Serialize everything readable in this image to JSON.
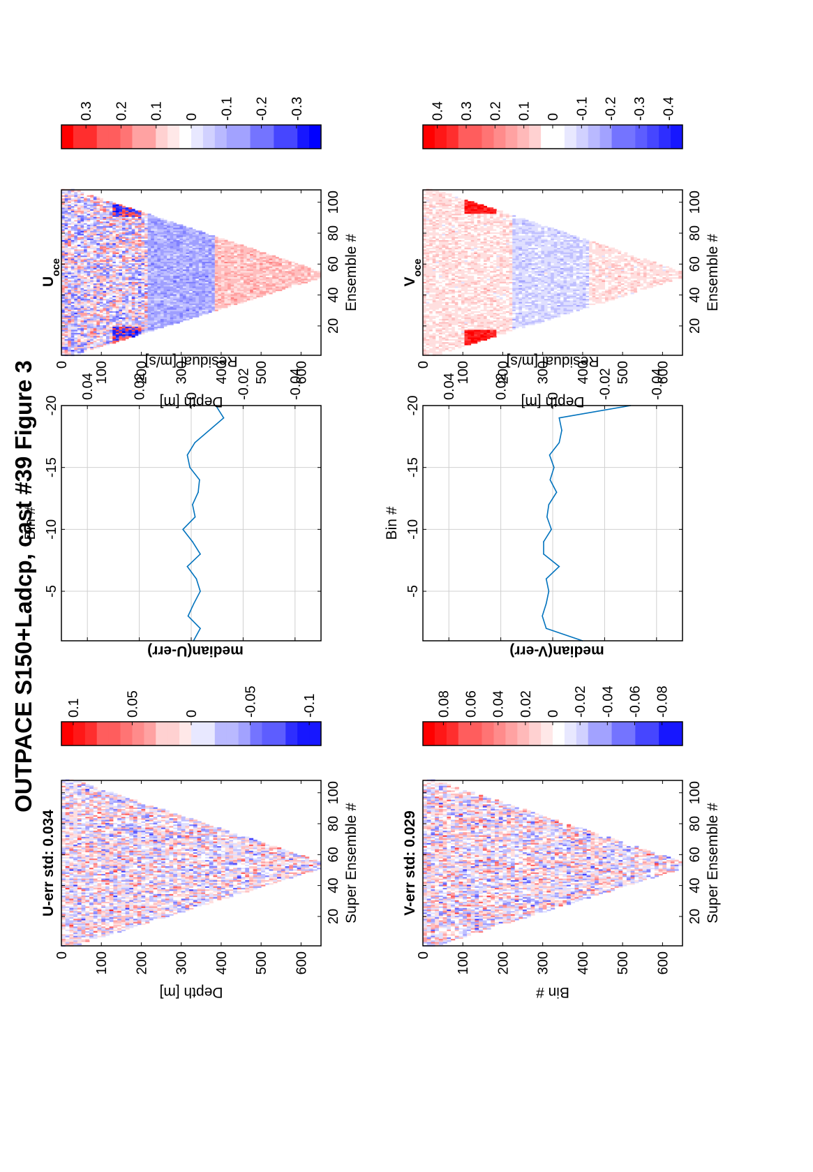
{
  "figure": {
    "title": "OUTPACE S150+Ladcp, cast #39  Figure 3"
  },
  "chart_data": [
    {
      "type": "heatmap",
      "title": "U-err std: 0.034",
      "xlabel": "Super Ensemble #",
      "ylabel": "Depth [m]",
      "xlim": [
        1,
        108
      ],
      "ylim": [
        0,
        650
      ],
      "xticks": [
        "20",
        "40",
        "60",
        "80",
        "100"
      ],
      "yticks": [
        "0",
        "100",
        "200",
        "300",
        "400",
        "500",
        "600"
      ],
      "shape": "V-shaped profile: depth 0 at ensembles 1 and 108, max ~640 m near ensemble 53",
      "colorbar": {
        "ticks": [
          "0.1",
          "0.05",
          "0",
          "-0.05",
          "-0.1"
        ],
        "range": [
          -0.11,
          0.11
        ],
        "colormap": "red-white-blue"
      }
    },
    {
      "type": "line",
      "title": "median(U-err)",
      "xlabel": "Residual [m/s]",
      "ylabel": "Bin #",
      "xlim": [
        -0.05,
        0.05
      ],
      "ylim": [
        -20,
        -1
      ],
      "xticks": [
        "-0.04",
        "-0.02",
        "0",
        "0.02",
        "0.04"
      ],
      "yticks": [
        "-5",
        "-10",
        "-15",
        "-20"
      ],
      "grid": true,
      "x": [
        -0.0009,
        -0.0035,
        0.0012,
        -0.001,
        -0.0035,
        -0.002,
        0.0015,
        -0.0035,
        -0.0005,
        0.0032,
        -0.0015,
        -0.0005,
        -0.0027,
        -0.0032,
        0.0005,
        0.0015,
        -0.0014,
        -0.0125,
        -0.0095
      ],
      "y": [
        -1,
        -2,
        -3,
        -4,
        -5,
        -6,
        -7,
        -8,
        -9,
        -10,
        -11,
        -12,
        -13,
        -14,
        -15,
        -16,
        -17,
        -19,
        -20
      ]
    },
    {
      "type": "heatmap",
      "title": "U",
      "title_subscript": "oce",
      "xlabel": "Ensemble #",
      "ylabel": "Depth [m]",
      "xlim": [
        1,
        108
      ],
      "ylim": [
        0,
        650
      ],
      "xticks": [
        "20",
        "40",
        "60",
        "80",
        "100"
      ],
      "yticks": [
        "0",
        "100",
        "200",
        "300",
        "400",
        "500",
        "600"
      ],
      "colorbar": {
        "ticks": [
          "0.3",
          "0.2",
          "0.1",
          "0",
          "-0.1",
          "-0.2",
          "-0.3"
        ],
        "range": [
          -0.37,
          0.37
        ],
        "colormap": "red-white-blue"
      }
    },
    {
      "type": "heatmap",
      "title": "V-err std: 0.029",
      "xlabel": "Super Ensemble #",
      "ylabel": "Bin #",
      "xlim": [
        1,
        108
      ],
      "ylim": [
        0,
        650
      ],
      "xticks": [
        "20",
        "40",
        "60",
        "80",
        "100"
      ],
      "yticks": [
        "0",
        "100",
        "200",
        "300",
        "400",
        "500",
        "600"
      ],
      "colorbar": {
        "ticks": [
          "0.08",
          "0.06",
          "0.04",
          "0.02",
          "0",
          "-0.02",
          "-0.04",
          "-0.06",
          "-0.08"
        ],
        "range": [
          -0.095,
          0.095
        ],
        "colormap": "red-white-blue"
      }
    },
    {
      "type": "line",
      "title": "median(V-err)",
      "xlabel": "Residual [m/s]",
      "ylabel": "Bin #",
      "xlim": [
        -0.05,
        0.05
      ],
      "ylim": [
        -20,
        -1
      ],
      "xticks": [
        "-0.04",
        "-0.02",
        "0",
        "0.02",
        "0.04"
      ],
      "yticks": [
        "-5",
        "-10",
        "-15",
        "-20"
      ],
      "grid": true,
      "x": [
        -0.0115,
        0.0025,
        0.004,
        0.0025,
        0.0015,
        0.0025,
        -0.0025,
        0.0035,
        0.0035,
        0.0005,
        0.0022,
        0.0015,
        -0.0015,
        0.001,
        -0.0005,
        0.0012,
        -0.0025,
        -0.0035,
        -0.0025,
        -0.03
      ],
      "y": [
        -1,
        -2,
        -3,
        -4,
        -5,
        -6,
        -7,
        -8,
        -9,
        -10,
        -11,
        -12,
        -13,
        -14,
        -15,
        -16,
        -17,
        -18,
        -19,
        -20
      ]
    },
    {
      "type": "heatmap",
      "title": "V",
      "title_subscript": "oce",
      "xlabel": "Ensemble #",
      "ylabel": "Depth [m]",
      "xlim": [
        1,
        108
      ],
      "ylim": [
        0,
        650
      ],
      "xticks": [
        "20",
        "40",
        "60",
        "80",
        "100"
      ],
      "yticks": [
        "0",
        "100",
        "200",
        "300",
        "400",
        "500",
        "600"
      ],
      "colorbar": {
        "ticks": [
          "0.4",
          "0.3",
          "0.2",
          "0.1",
          "0",
          "-0.1",
          "-0.2",
          "-0.3",
          "-0.4"
        ],
        "range": [
          -0.45,
          0.45
        ],
        "colormap": "red-white-blue"
      }
    }
  ]
}
